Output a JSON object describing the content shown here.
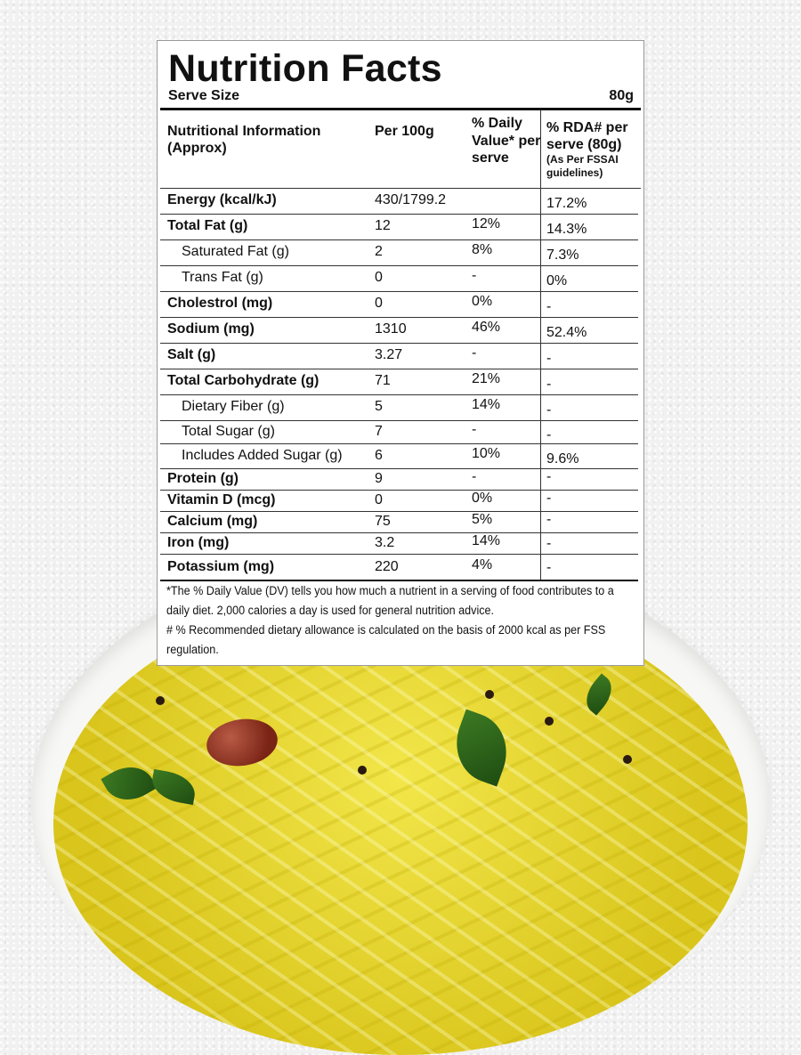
{
  "label": {
    "title": "Nutrition Facts",
    "serve_size_label": "Serve Size",
    "serve_size_value": "80g",
    "headers": {
      "col1": "Nutritional Information (Approx)",
      "col2": "Per 100g",
      "col3": "% Daily Value* per serve",
      "col4_main": "% RDA# per serve (80g)",
      "col4_sub": "(As Per FSSAI guidelines)"
    },
    "rows": [
      {
        "name": "Energy (kcal/kJ)",
        "per100": "430/1799.2",
        "dv": "",
        "rda": "17.2%"
      },
      {
        "name": "Total Fat (g)",
        "per100": "12",
        "dv": "12%",
        "rda": "14.3%"
      },
      {
        "name": "Saturated Fat (g)",
        "per100": "2",
        "dv": "8%",
        "rda": "7.3%"
      },
      {
        "name": "Trans Fat (g)",
        "per100": "0",
        "dv": "-",
        "rda": "0%"
      },
      {
        "name": "Cholestrol (mg)",
        "per100": "0",
        "dv": "0%",
        "rda": "-"
      },
      {
        "name": "Sodium (mg)",
        "per100": "1310",
        "dv": "46%",
        "rda": "52.4%"
      },
      {
        "name": "Salt (g)",
        "per100": "3.27",
        "dv": "-",
        "rda": "-"
      },
      {
        "name": "Total Carbohydrate (g)",
        "per100": "71",
        "dv": "21%",
        "rda": "-"
      },
      {
        "name": "Dietary Fiber (g)",
        "per100": "5",
        "dv": "14%",
        "rda": "-"
      },
      {
        "name": "Total Sugar (g)",
        "per100": "7",
        "dv": "-",
        "rda": "-"
      },
      {
        "name": "Includes Added Sugar (g)",
        "per100": "6",
        "dv": "10%",
        "rda": "9.6%"
      },
      {
        "name": "Protein (g)",
        "per100": "9",
        "dv": "-",
        "rda": "-"
      },
      {
        "name": "Vitamin D (mcg)",
        "per100": "0",
        "dv": "0%",
        "rda": "-"
      },
      {
        "name": "Calcium (mg)",
        "per100": "75",
        "dv": "5%",
        "rda": "-"
      },
      {
        "name": "Iron (mg)",
        "per100": "3.2",
        "dv": "14%",
        "rda": "-"
      },
      {
        "name": "Potassium (mg)",
        "per100": "220",
        "dv": "4%",
        "rda": "-"
      }
    ],
    "footnote_dv": "*The % Daily Value (DV) tells you how much a nutrient in a serving of food contributes to a daily diet. 2,000 calories a day is used for general nutrition advice.",
    "footnote_rda": "# % Recommended dietary allowance is calculated on the basis of 2000 kcal as per FSS regulation."
  }
}
